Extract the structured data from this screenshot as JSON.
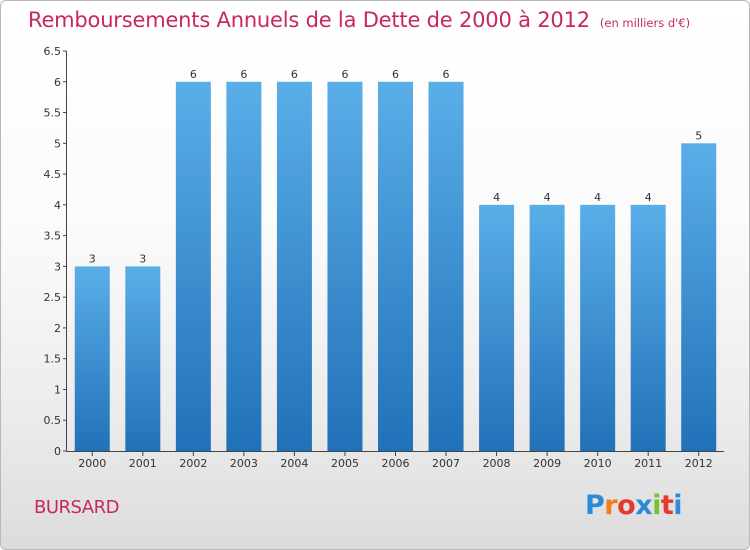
{
  "chart_data": {
    "type": "bar",
    "title": "Remboursements Annuels de la Dette de 2000 à 2012",
    "subtitle": "(en milliers d'€)",
    "categories": [
      "2000",
      "2001",
      "2002",
      "2003",
      "2004",
      "2005",
      "2006",
      "2007",
      "2008",
      "2009",
      "2010",
      "2011",
      "2012"
    ],
    "values": [
      3,
      3,
      6,
      6,
      6,
      6,
      6,
      6,
      4,
      4,
      4,
      4,
      5
    ],
    "data_labels": [
      "3",
      "3",
      "6",
      "6",
      "6",
      "6",
      "6",
      "6",
      "4",
      "4",
      "4",
      "4",
      "5"
    ],
    "ylim": [
      0,
      6.5
    ],
    "yticks": [
      "0",
      "0.5",
      "1",
      "1.5",
      "2",
      "2.5",
      "3",
      "3.5",
      "4",
      "4.5",
      "5",
      "5.5",
      "6",
      "6.5"
    ],
    "xlabel": "",
    "ylabel": "",
    "grid": false,
    "bar_color_top": "#5aaee8",
    "bar_color_bottom": "#2171b8"
  },
  "footer": {
    "commune": "BURSARD",
    "logo_letters": [
      "P",
      "r",
      "o",
      "x",
      "i",
      "t",
      "i"
    ],
    "logo_colors": [
      "#2a8bd8",
      "#f07d1a",
      "#e33b2a",
      "#2a8bd8",
      "#7cc031",
      "#e33b2a",
      "#2a8bd8"
    ]
  }
}
